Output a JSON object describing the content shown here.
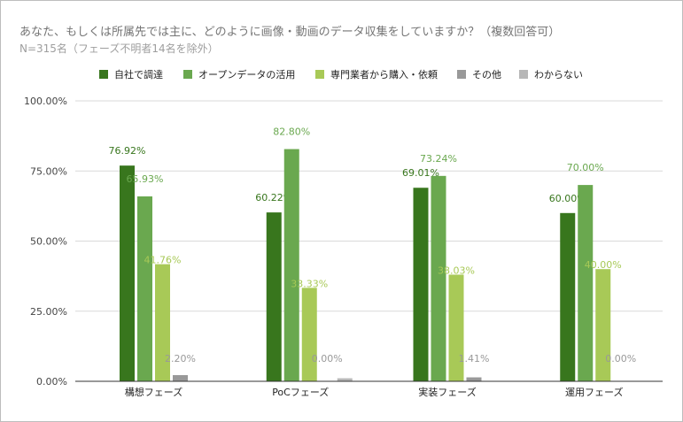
{
  "chart_data": {
    "type": "bar",
    "title": "あなた、もしくは所属先では主に、どのように画像・動画のデータ収集をしていますか？（複数回答可）",
    "subtitle": "N=315名（フェーズ不明者14名を除外）",
    "categories": [
      "構想フェーズ",
      "PoCフェーズ",
      "実装フェーズ",
      "運用フェーズ"
    ],
    "series": [
      {
        "name": "自社で調達",
        "color": "#38761d",
        "label_color": "#38761d",
        "values": [
          76.92,
          60.22,
          69.01,
          60.0
        ],
        "labels": [
          "76.92%",
          "60.22%",
          "69.01%",
          "60.00%"
        ]
      },
      {
        "name": "オープンデータの活用",
        "color": "#6aa84f",
        "label_color": "#6aa84f",
        "values": [
          65.93,
          82.8,
          73.24,
          70.0
        ],
        "labels": [
          "65.93%",
          "82.80%",
          "73.24%",
          "70.00%"
        ]
      },
      {
        "name": "専門業者から購入・依頼",
        "color": "#a8c957",
        "label_color": "#a8c957",
        "values": [
          41.76,
          33.33,
          38.03,
          40.0
        ],
        "labels": [
          "41.76%",
          "33.33%",
          "38.03%",
          "40.00%"
        ]
      },
      {
        "name": "その他",
        "color": "#999999",
        "label_color": "#999999",
        "values": [
          2.2,
          0.0,
          1.41,
          0.0
        ],
        "labels": [
          "2.20%",
          "0.00%",
          "1.41%",
          "0.00%"
        ]
      },
      {
        "name": "わからない",
        "color": "#b7b7b7",
        "label_color": "#b7b7b7",
        "values": [
          0.0,
          1.08,
          0.0,
          0.0
        ],
        "labels": [
          null,
          null,
          null,
          null
        ]
      }
    ],
    "ylim": [
      0,
      100
    ],
    "yticks": [
      0,
      25,
      50,
      75,
      100
    ],
    "ytick_labels": [
      "0.00%",
      "25.00%",
      "50.00%",
      "75.00%",
      "100.00%"
    ],
    "grid": true,
    "legend": "top"
  }
}
